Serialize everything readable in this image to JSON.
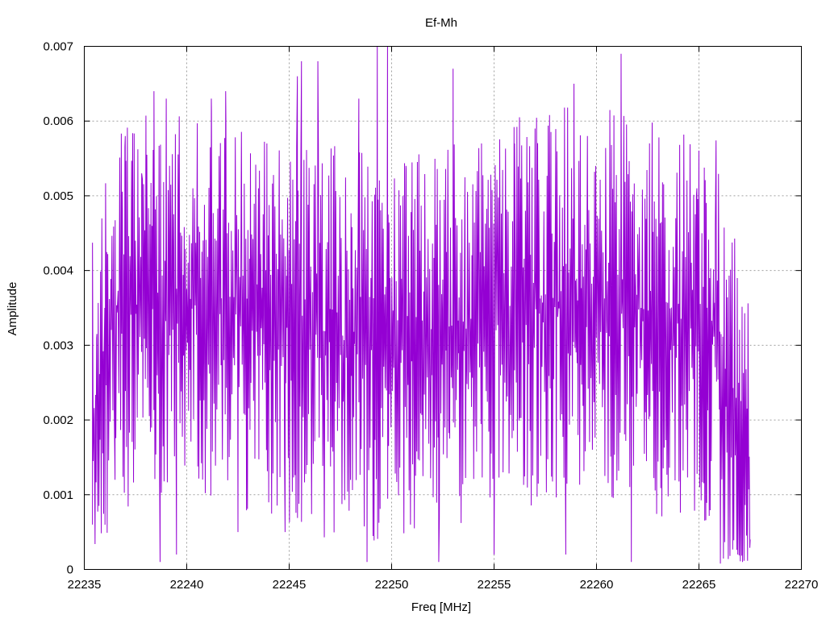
{
  "chart_data": {
    "type": "line",
    "title": "Ef-Mh",
    "xlabel": "Freq [MHz]",
    "ylabel": "Amplitude",
    "xlim": [
      22235,
      22270
    ],
    "ylim": [
      0,
      0.007
    ],
    "xticks": [
      22235,
      22240,
      22245,
      22250,
      22255,
      22260,
      22265,
      22270
    ],
    "xtick_labels": [
      "22235",
      "22240",
      "22245",
      "22250",
      "22255",
      "22260",
      "22265",
      "22270"
    ],
    "yticks": [
      0,
      0.001,
      0.002,
      0.003,
      0.004,
      0.005,
      0.006,
      0.007
    ],
    "ytick_labels": [
      "0",
      "0.001",
      "0.002",
      "0.003",
      "0.004",
      "0.005",
      "0.006",
      "0.007"
    ],
    "grid": true,
    "series": [
      {
        "color": "#9400d3",
        "x_start": 22235.4,
        "x_end": 22267.5,
        "anchor_points": [
          {
            "x": 22235.4,
            "y": 0.0006
          },
          {
            "x": 22235.6,
            "y": 0.0031
          },
          {
            "x": 22236.0,
            "y": 0.0035
          },
          {
            "x": 22236.5,
            "y": 0.0012
          },
          {
            "x": 22237.0,
            "y": 0.0058
          },
          {
            "x": 22237.8,
            "y": 0.0053
          },
          {
            "x": 22238.4,
            "y": 0.0064
          },
          {
            "x": 22238.7,
            "y": 0.0001
          },
          {
            "x": 22239.0,
            "y": 0.0063
          },
          {
            "x": 22239.5,
            "y": 0.0002
          },
          {
            "x": 22240.3,
            "y": 0.0051
          },
          {
            "x": 22241.2,
            "y": 0.0063
          },
          {
            "x": 22241.9,
            "y": 0.0064
          },
          {
            "x": 22242.5,
            "y": 0.0005
          },
          {
            "x": 22243.5,
            "y": 0.0051
          },
          {
            "x": 22244.8,
            "y": 0.0005
          },
          {
            "x": 22245.4,
            "y": 0.0066
          },
          {
            "x": 22245.6,
            "y": 0.0068
          },
          {
            "x": 22246.4,
            "y": 0.0068
          },
          {
            "x": 22248.4,
            "y": 0.0063
          },
          {
            "x": 22248.8,
            "y": 0.0001
          },
          {
            "x": 22249.3,
            "y": 0.007
          },
          {
            "x": 22249.8,
            "y": 0.007
          },
          {
            "x": 22250.7,
            "y": 0.0054
          },
          {
            "x": 22252.3,
            "y": 0.0001
          },
          {
            "x": 22253.0,
            "y": 0.0067
          },
          {
            "x": 22255.0,
            "y": 0.0002
          },
          {
            "x": 22256.0,
            "y": 0.0057
          },
          {
            "x": 22257.0,
            "y": 0.0059
          },
          {
            "x": 22258.5,
            "y": 0.0002
          },
          {
            "x": 22258.9,
            "y": 0.0065
          },
          {
            "x": 22261.2,
            "y": 0.0069
          },
          {
            "x": 22261.7,
            "y": 0.0001
          },
          {
            "x": 22264.9,
            "y": 0.0051
          },
          {
            "x": 22265.8,
            "y": 0.0046
          },
          {
            "x": 22266.5,
            "y": 0.0012
          },
          {
            "x": 22267.0,
            "y": 0.0008
          },
          {
            "x": 22267.5,
            "y": 0.0004
          }
        ]
      }
    ]
  }
}
